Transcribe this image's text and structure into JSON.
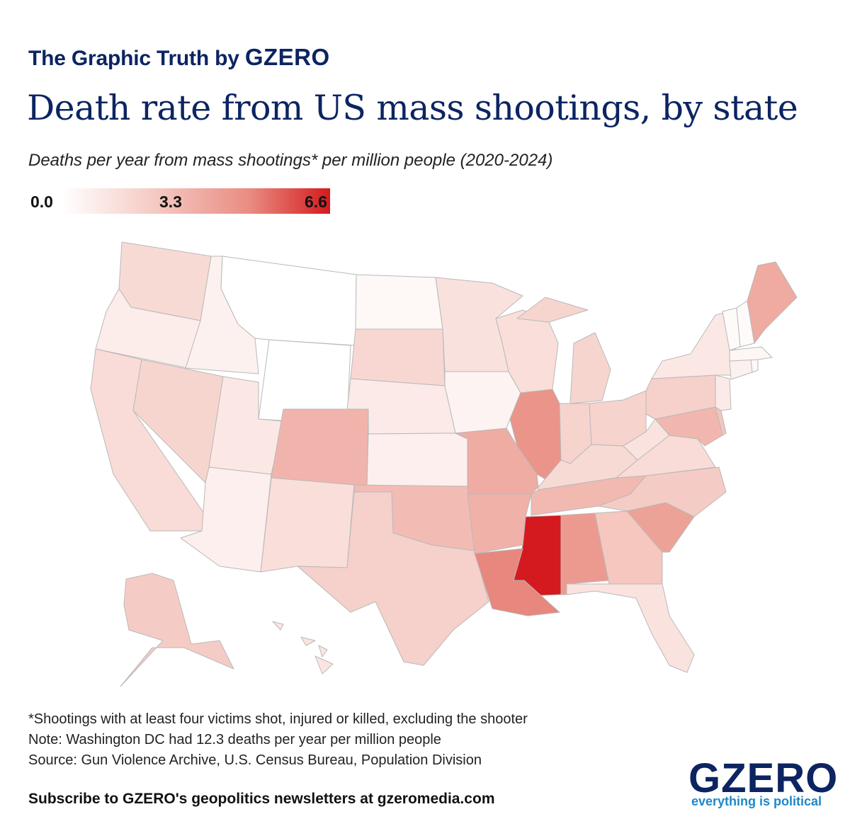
{
  "header": {
    "kicker_prefix": "The Graphic Truth by",
    "kicker_brand": "GZERO",
    "title": "Death rate from US mass shootings, by state",
    "subtitle": "Deaths per year from mass shootings* per million people (2020-2024)"
  },
  "legend": {
    "min": "0.0",
    "mid": "3.3",
    "max": "6.6",
    "range": [
      0,
      6.6
    ]
  },
  "map_data": {
    "type": "choropleth",
    "colors": {
      "low": "#ffffff",
      "high": "#d41a1e",
      "border": "#b9b9b9"
    },
    "states": [
      {
        "id": "WA",
        "level": 1.6
      },
      {
        "id": "OR",
        "level": 0.8
      },
      {
        "id": "ID",
        "level": 0.6
      },
      {
        "id": "MT",
        "level": 0.0
      },
      {
        "id": "WY",
        "level": 0.0
      },
      {
        "id": "ND",
        "level": 0.3
      },
      {
        "id": "SD",
        "level": 1.7
      },
      {
        "id": "NE",
        "level": 0.9
      },
      {
        "id": "KS",
        "level": 0.7
      },
      {
        "id": "MN",
        "level": 1.3
      },
      {
        "id": "IA",
        "level": 0.5
      },
      {
        "id": "MO",
        "level": 3.4
      },
      {
        "id": "WI",
        "level": 1.4
      },
      {
        "id": "IL",
        "level": 4.3
      },
      {
        "id": "IN",
        "level": 1.9
      },
      {
        "id": "MI",
        "level": 1.8
      },
      {
        "id": "OH",
        "level": 1.9
      },
      {
        "id": "KY",
        "level": 1.6
      },
      {
        "id": "TN",
        "level": 2.9
      },
      {
        "id": "MS",
        "level": 6.6
      },
      {
        "id": "AL",
        "level": 4.1
      },
      {
        "id": "GA",
        "level": 2.4
      },
      {
        "id": "FL",
        "level": 1.2
      },
      {
        "id": "SC",
        "level": 3.8
      },
      {
        "id": "NC",
        "level": 2.2
      },
      {
        "id": "VA",
        "level": 1.5
      },
      {
        "id": "WV",
        "level": 1.2
      },
      {
        "id": "PA",
        "level": 2.0
      },
      {
        "id": "NY",
        "level": 1.0
      },
      {
        "id": "ME",
        "level": 3.5
      },
      {
        "id": "NJ",
        "level": 0.9
      },
      {
        "id": "MD",
        "level": 3.0
      },
      {
        "id": "DE",
        "level": 2.5
      },
      {
        "id": "VT",
        "level": 0.2
      },
      {
        "id": "NH",
        "level": 0.2
      },
      {
        "id": "MA",
        "level": 0.4
      },
      {
        "id": "CT",
        "level": 0.6
      },
      {
        "id": "RI",
        "level": 0.3
      },
      {
        "id": "CA",
        "level": 1.5
      },
      {
        "id": "NV",
        "level": 1.8
      },
      {
        "id": "UT",
        "level": 1.0
      },
      {
        "id": "AZ",
        "level": 0.7
      },
      {
        "id": "CO",
        "level": 3.1
      },
      {
        "id": "NM",
        "level": 1.4
      },
      {
        "id": "TX",
        "level": 2.0
      },
      {
        "id": "OK",
        "level": 2.8
      },
      {
        "id": "AR",
        "level": 3.2
      },
      {
        "id": "LA",
        "level": 4.7
      },
      {
        "id": "AK",
        "level": 2.2
      },
      {
        "id": "HI",
        "level": 1.1
      }
    ]
  },
  "footer": {
    "note1": "*Shootings with at least four victims shot, injured or killed, excluding the shooter",
    "note2": "Note: Washington DC had 12.3 deaths per year per million people",
    "source": "Source: Gun Violence Archive, U.S. Census Bureau, Population Division",
    "subscribe": "Subscribe to GZERO's geopolitics newsletters at gzeromedia.com",
    "logo_word": "GZERO",
    "logo_tagline": "everything is political"
  }
}
